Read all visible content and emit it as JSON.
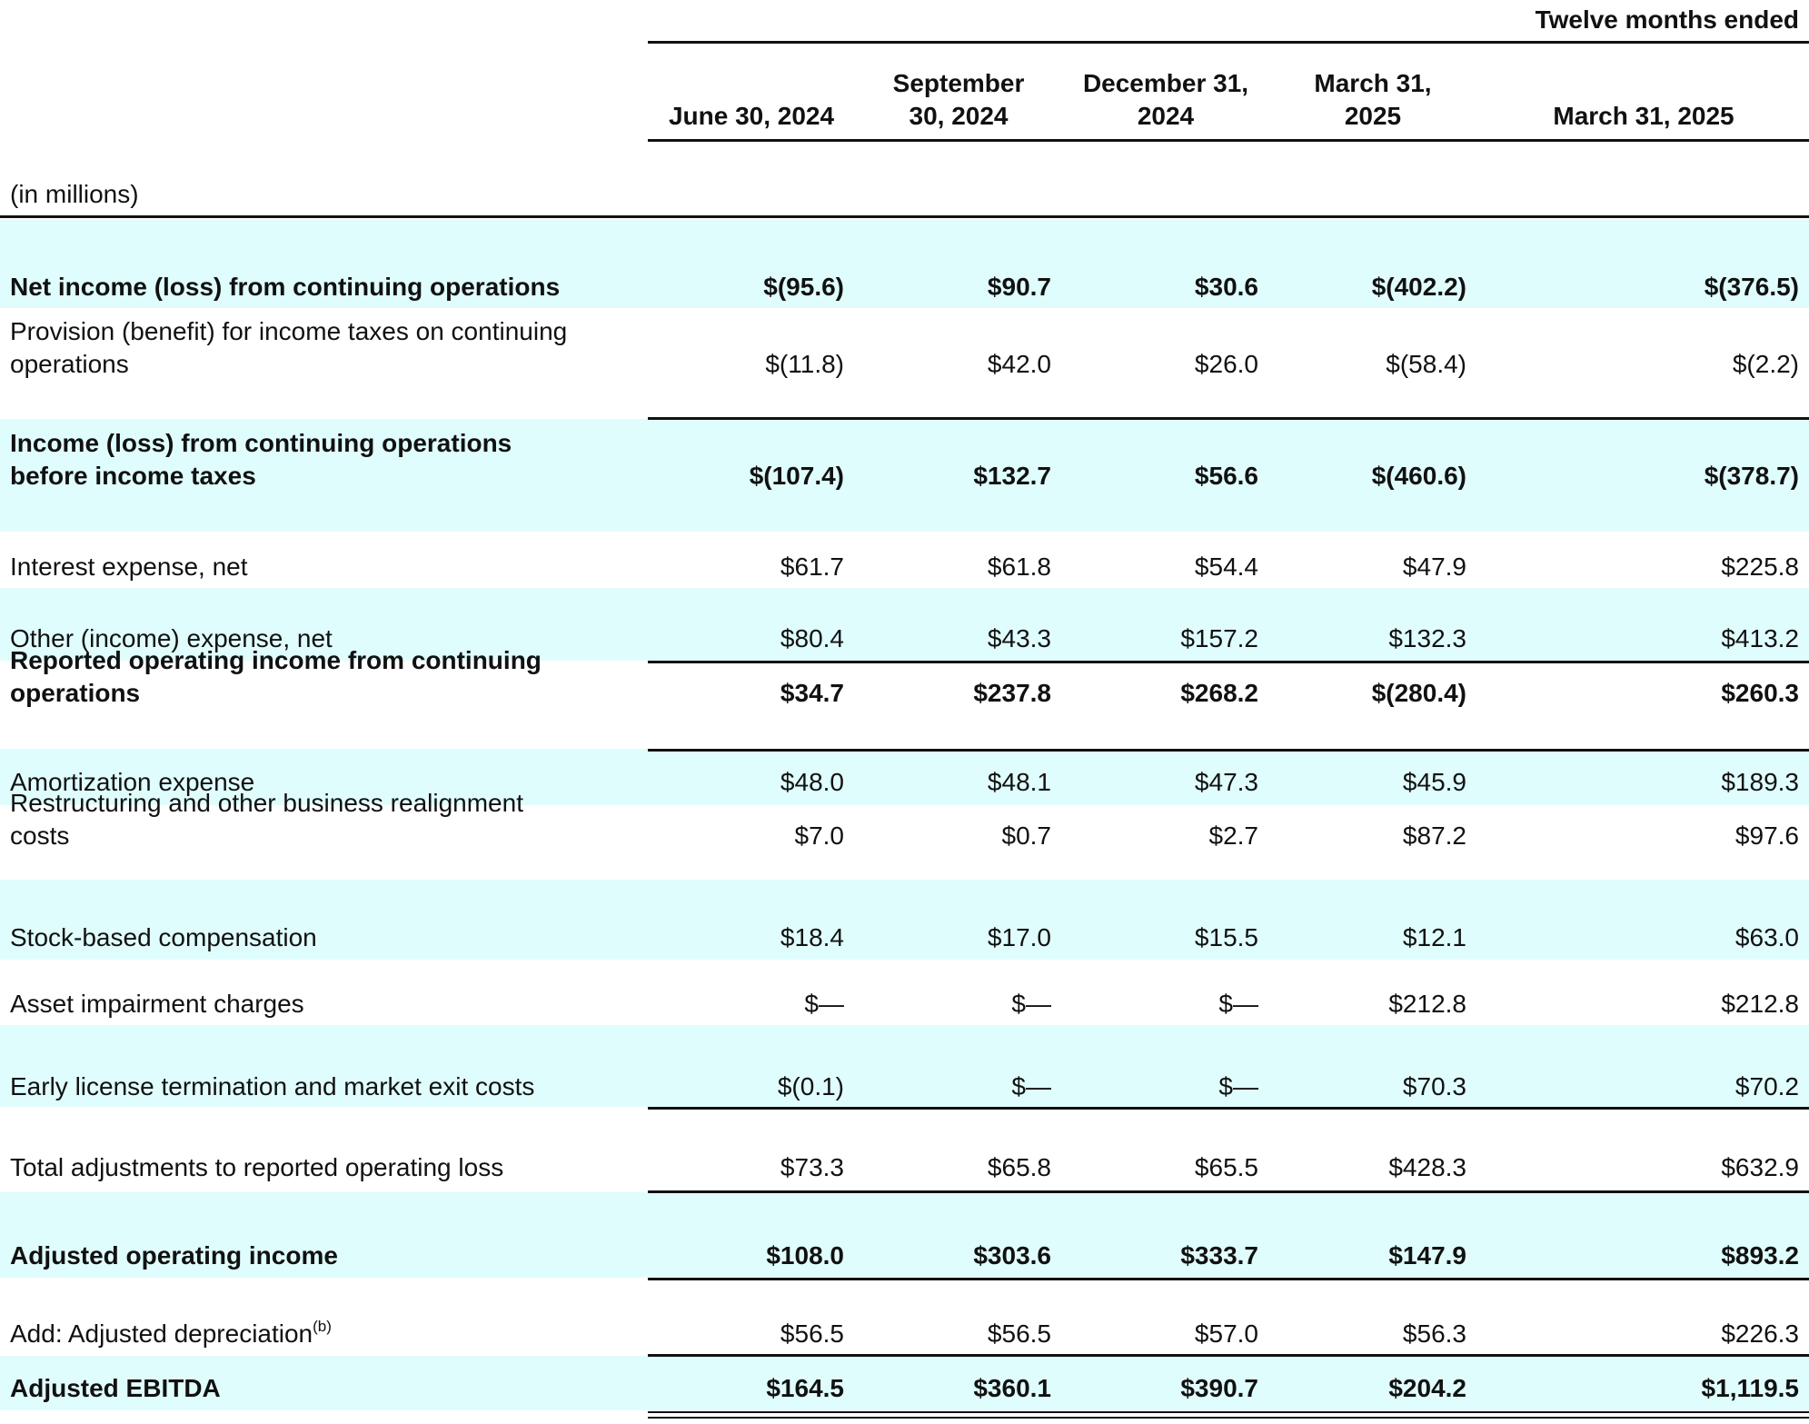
{
  "header": {
    "group_label": "Twelve months ended",
    "columns": [
      [
        "",
        "June 30, 2024"
      ],
      [
        "September",
        "30, 2024"
      ],
      [
        "December 31,",
        "2024"
      ],
      [
        "March 31,",
        "2025"
      ],
      [
        "",
        "March 31, 2025"
      ]
    ],
    "units": "(in millions)"
  },
  "rows": [
    {
      "label": [
        "Net income (loss) from continuing operations"
      ],
      "values": [
        "$(95.6)",
        "$90.7",
        "$30.6",
        "$(402.2)",
        "$(376.5)"
      ]
    },
    {
      "label": [
        "Provision (benefit) for income taxes on continuing",
        "operations"
      ],
      "values": [
        "$(11.8)",
        "$42.0",
        "$26.0",
        "$(58.4)",
        "$(2.2)"
      ]
    },
    {
      "label": [
        "Income (loss) from continuing operations",
        "before income taxes"
      ],
      "values": [
        "$(107.4)",
        "$132.7",
        "$56.6",
        "$(460.6)",
        "$(378.7)"
      ]
    },
    {
      "label": [
        "Interest expense, net"
      ],
      "values": [
        "$61.7",
        "$61.8",
        "$54.4",
        "$47.9",
        "$225.8"
      ]
    },
    {
      "label": [
        "Other (income) expense, net"
      ],
      "values": [
        "$80.4",
        "$43.3",
        "$157.2",
        "$132.3",
        "$413.2"
      ]
    },
    {
      "label": [
        "Reported operating income  from continuing",
        "operations"
      ],
      "values": [
        "$34.7",
        "$237.8",
        "$268.2",
        "$(280.4)",
        "$260.3"
      ]
    },
    {
      "label": [
        "Amortization expense"
      ],
      "values": [
        "$48.0",
        "$48.1",
        "$47.3",
        "$45.9",
        "$189.3"
      ]
    },
    {
      "label": [
        "Restructuring and other business realignment",
        "costs"
      ],
      "values": [
        "$7.0",
        "$0.7",
        "$2.7",
        "$87.2",
        "$97.6"
      ]
    },
    {
      "label": [
        "Stock-based compensation"
      ],
      "values": [
        "$18.4",
        "$17.0",
        "$15.5",
        "$12.1",
        "$63.0"
      ]
    },
    {
      "label": [
        "Asset impairment charges"
      ],
      "values": [
        "$—",
        "$—",
        "$—",
        "$212.8",
        "$212.8"
      ]
    },
    {
      "label": [
        "Early license termination and market exit costs"
      ],
      "values": [
        "$(0.1)",
        "$—",
        "$—",
        "$70.3",
        "$70.2"
      ]
    },
    {
      "label": [
        "Total adjustments to reported operating loss"
      ],
      "values": [
        "$73.3",
        "$65.8",
        "$65.5",
        "$428.3",
        "$632.9"
      ]
    },
    {
      "label": [
        "Adjusted operating income"
      ],
      "values": [
        "$108.0",
        "$303.6",
        "$333.7",
        "$147.9",
        "$893.2"
      ]
    },
    {
      "label": [
        "Add: Adjusted depreciation"
      ],
      "sup": "(b)",
      "values": [
        "$56.5",
        "$56.5",
        "$57.0",
        "$56.3",
        "$226.3"
      ]
    },
    {
      "label": [
        "Adjusted EBITDA"
      ],
      "values": [
        "$164.5",
        "$360.1",
        "$390.7",
        "$204.2",
        "$1,119.5"
      ]
    }
  ]
}
